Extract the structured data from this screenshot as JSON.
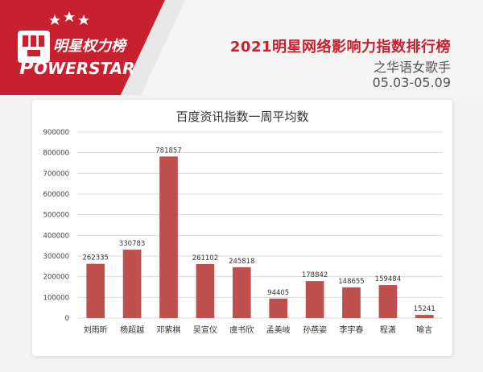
{
  "header": {
    "logo_top": "明星权力榜",
    "logo_bottom": "OWERSTAR",
    "logo_p": "P",
    "title": "2021明星网络影响力指数排行榜",
    "subtitle": "之华语女歌手",
    "date_range": "05.03-05.09"
  },
  "colors": {
    "brand": "#c8202f",
    "bar": "#c0504d",
    "grid": "#d9d9d9"
  },
  "chart_data": {
    "type": "bar",
    "title": "百度资讯指数一周平均数",
    "categories": [
      "刘雨昕",
      "杨超越",
      "邓紫棋",
      "吴宣仪",
      "虞书欣",
      "孟美岐",
      "孙燕姿",
      "李宇春",
      "程潇",
      "喻言"
    ],
    "values": [
      262335,
      330783,
      781857,
      261102,
      245818,
      94405,
      178842,
      148655,
      159484,
      15241
    ],
    "ylim": [
      0,
      900000
    ],
    "yticks": [
      "0",
      "100000",
      "200000",
      "300000",
      "400000",
      "500000",
      "600000",
      "700000",
      "800000",
      "900000"
    ],
    "grid": true,
    "xlabel": "",
    "ylabel": ""
  }
}
